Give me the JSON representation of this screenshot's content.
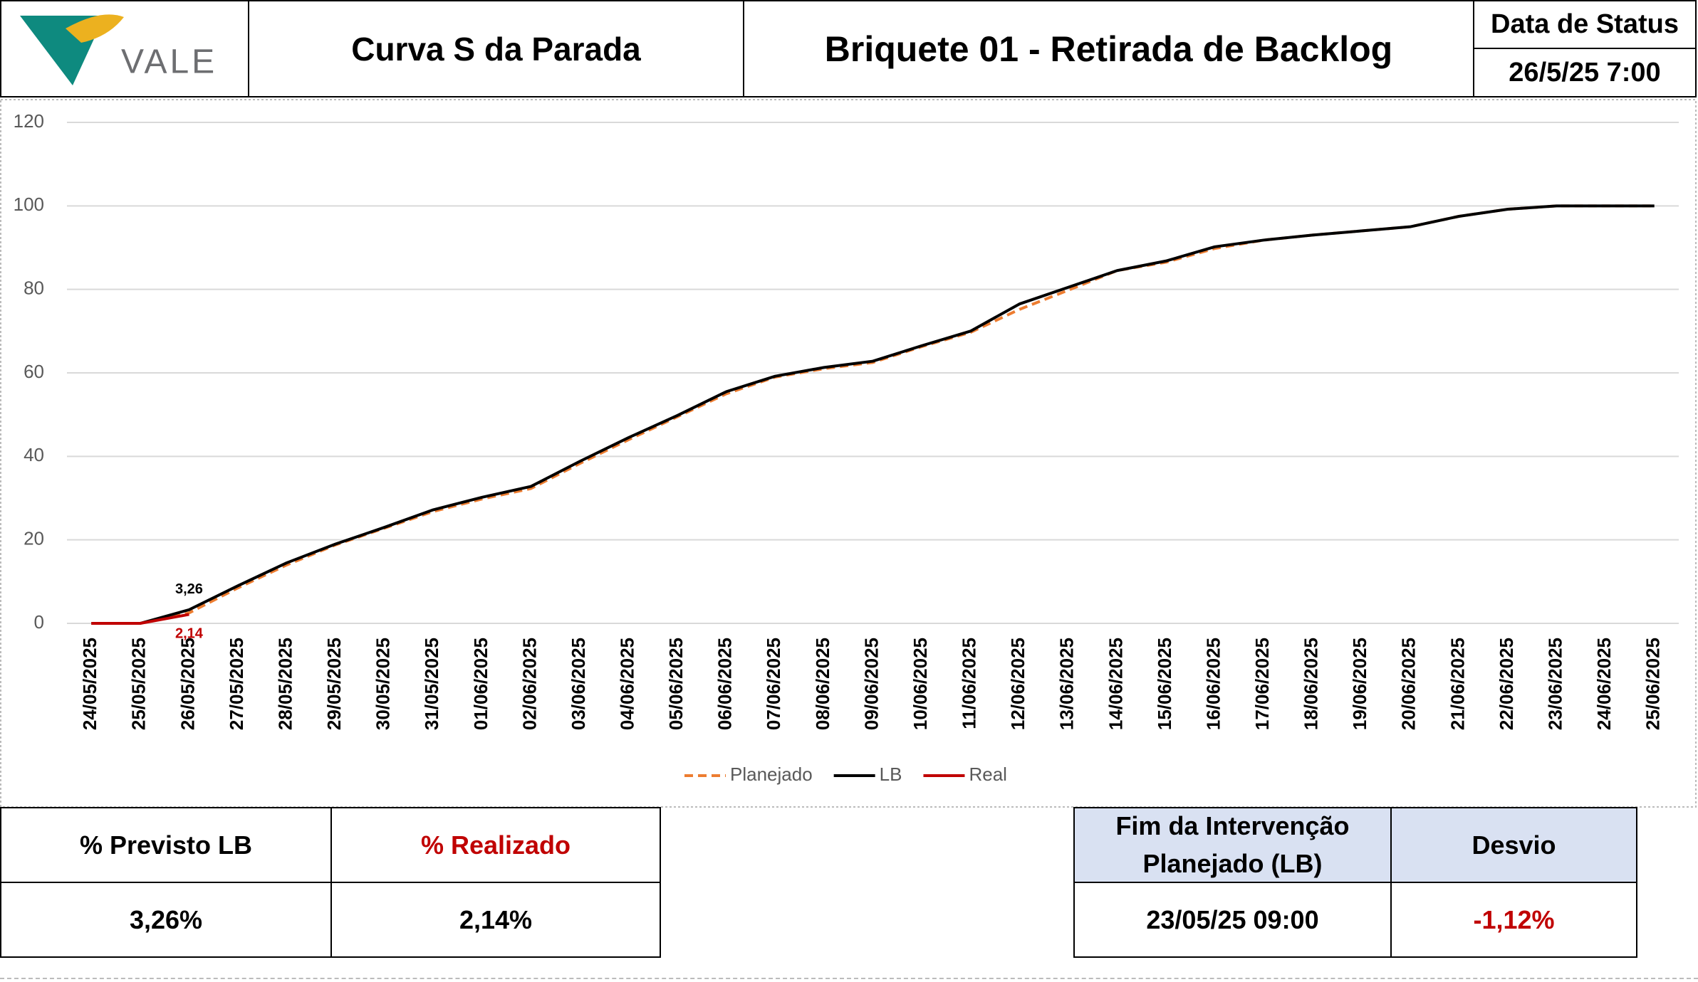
{
  "header": {
    "logo": "VALE",
    "title": "Curva S da Parada",
    "subtitle": "Briquete 01 - Retirada de Backlog",
    "status_label": "Data de Status",
    "status_value": "26/5/25 7:00"
  },
  "chart_data": {
    "type": "line",
    "categories": [
      "24/05/2025",
      "25/05/2025",
      "26/05/2025",
      "27/05/2025",
      "28/05/2025",
      "29/05/2025",
      "30/05/2025",
      "31/05/2025",
      "01/06/2025",
      "02/06/2025",
      "03/06/2025",
      "04/06/2025",
      "05/06/2025",
      "06/06/2025",
      "07/06/2025",
      "08/06/2025",
      "09/06/2025",
      "10/06/2025",
      "11/06/2025",
      "12/06/2025",
      "13/06/2025",
      "14/06/2025",
      "15/06/2025",
      "16/06/2025",
      "17/06/2025",
      "18/06/2025",
      "19/06/2025",
      "20/06/2025",
      "21/06/2025",
      "22/06/2025",
      "23/06/2025",
      "24/06/2025",
      "25/06/2025"
    ],
    "series": [
      {
        "name": "Planejado",
        "color": "#ed7d31",
        "dashed": true,
        "values": [
          0,
          0,
          2.5,
          8.5,
          14,
          18.8,
          22.8,
          26.8,
          29.8,
          32.3,
          38.3,
          44,
          49.5,
          55,
          59,
          61,
          62.5,
          66.3,
          69.7,
          75.2,
          79.8,
          84.5,
          86.5,
          89.8,
          91.8,
          93,
          94,
          95,
          97.5,
          99.2,
          100,
          100,
          100
        ]
      },
      {
        "name": "LB",
        "color": "#000000",
        "values": [
          0,
          0,
          3.26,
          9,
          14.5,
          19,
          23,
          27.2,
          30.2,
          32.8,
          38.8,
          44.5,
          49.8,
          55.5,
          59.2,
          61.3,
          62.8,
          66.5,
          70,
          76.5,
          80.5,
          84.5,
          86.8,
          90.2,
          91.8,
          93,
          94,
          95,
          97.5,
          99.2,
          100,
          100,
          100
        ],
        "value_labels": [
          null,
          null,
          "3,26",
          null,
          null,
          null,
          null,
          null,
          null,
          null,
          null,
          null,
          null,
          null,
          null,
          null,
          null,
          null,
          null,
          null,
          null,
          null,
          null,
          null,
          null,
          null,
          null,
          null,
          null,
          null,
          null,
          null,
          null
        ]
      },
      {
        "name": "Real",
        "color": "#c00000",
        "values": [
          0,
          0,
          2.14,
          null,
          null,
          null,
          null,
          null,
          null,
          null,
          null,
          null,
          null,
          null,
          null,
          null,
          null,
          null,
          null,
          null,
          null,
          null,
          null,
          null,
          null,
          null,
          null,
          null,
          null,
          null,
          null,
          null,
          null
        ],
        "value_labels": [
          null,
          null,
          "2,14",
          null,
          null,
          null,
          null,
          null,
          null,
          null,
          null,
          null,
          null,
          null,
          null,
          null,
          null,
          null,
          null,
          null,
          null,
          null,
          null,
          null,
          null,
          null,
          null,
          null,
          null,
          null,
          null,
          null,
          null
        ]
      }
    ],
    "ylim": [
      0,
      120
    ],
    "yticks": [
      0,
      20,
      40,
      60,
      80,
      100,
      120
    ],
    "grid": true,
    "legend": "bottom"
  },
  "summary_left": {
    "headers": [
      "% Previsto LB",
      "% Realizado"
    ],
    "values": [
      "3,26%",
      "2,14%"
    ]
  },
  "summary_right": {
    "headers": [
      "Fim da Intervenção Planejado (LB)",
      "Desvio"
    ],
    "values": [
      "23/05/25 09:00",
      "-1,12%"
    ]
  }
}
